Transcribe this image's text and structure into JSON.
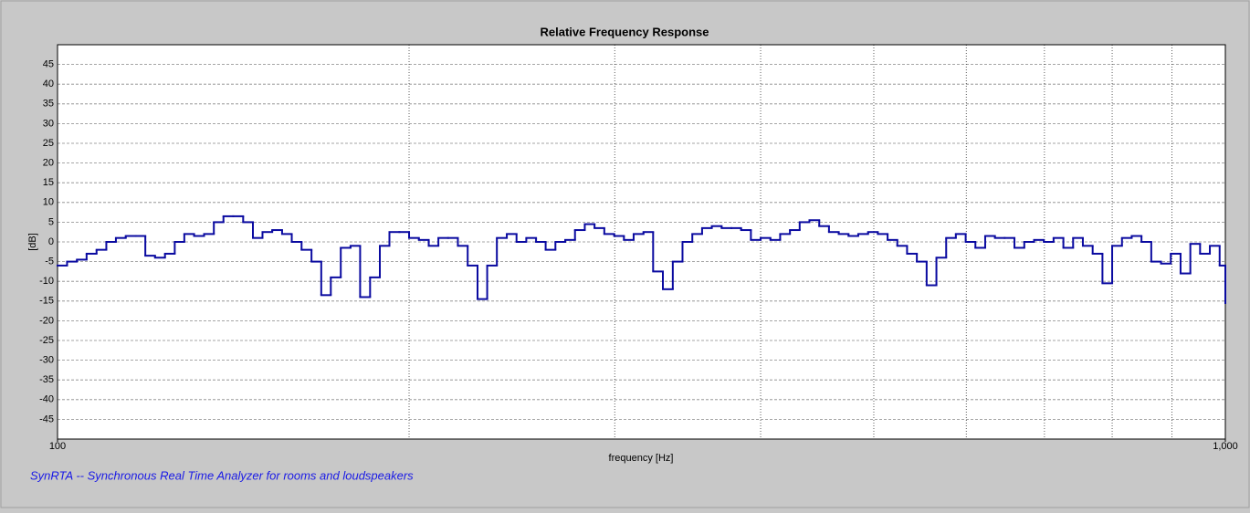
{
  "chart_data": {
    "type": "step",
    "title": "Relative Frequency Response",
    "xlabel": "frequency [Hz]",
    "ylabel": "[dB]",
    "xscale": "log",
    "xlim": [
      100,
      1000
    ],
    "ylim": [
      -50,
      50
    ],
    "xticks": [
      {
        "value": 100,
        "label": "100"
      },
      {
        "value": 1000,
        "label": "1,000"
      }
    ],
    "xgrid_minor": [
      200,
      300,
      400,
      500,
      600,
      700,
      800,
      900
    ],
    "yticks": [
      -45,
      -40,
      -35,
      -30,
      -25,
      -20,
      -15,
      -10,
      -5,
      0,
      5,
      10,
      15,
      20,
      25,
      30,
      35,
      40,
      45
    ],
    "grid": true,
    "color": "#0a0aa0",
    "x": [
      100,
      101.9,
      103.9,
      105.9,
      108.0,
      110.1,
      112.2,
      114.4,
      116.7,
      118.9,
      121.2,
      123.6,
      126.0,
      128.4,
      130.9,
      133.5,
      136.1,
      138.7,
      141.4,
      144.2,
      147.0,
      149.8,
      152.7,
      155.7,
      158.7,
      161.8,
      165.0,
      168.2,
      171.4,
      174.8,
      178.2,
      181.6,
      185.2,
      188.8,
      192.4,
      196.2,
      200,
      203.9,
      207.9,
      211.9,
      216.0,
      220.2,
      224.5,
      228.9,
      233.3,
      237.8,
      242.5,
      247.2,
      252.0,
      256.9,
      261.8,
      266.9,
      272.1,
      277.4,
      282.8,
      288.3,
      293.9,
      299.7,
      305.5,
      311.4,
      317.5,
      323.6,
      329.9,
      336.4,
      342.9,
      349.6,
      356.4,
      363.3,
      370.4,
      377.6,
      384.9,
      392.4,
      400,
      407.8,
      415.7,
      423.8,
      432.0,
      440.4,
      449.0,
      457.7,
      466.6,
      475.7,
      484.9,
      494.4,
      504.0,
      513.8,
      523.7,
      533.9,
      544.3,
      554.9,
      565.7,
      576.7,
      587.8,
      599.3,
      610.9,
      622.8,
      634.9,
      647.2,
      659.8,
      672.7,
      685.8,
      699.1,
      712.7,
      726.6,
      740.7,
      755.1,
      769.8,
      784.8,
      800,
      815.6,
      831.4,
      847.6,
      864.1,
      880.9,
      898.0,
      915.5,
      933.3,
      951.4,
      969.9,
      988.8,
      1000
    ],
    "values": [
      -6,
      -5,
      -4.5,
      -3,
      -2,
      0,
      1,
      1.5,
      1.5,
      -3.5,
      -4,
      -3,
      0,
      2,
      1.5,
      2,
      5,
      6.5,
      6.5,
      5,
      1,
      2.5,
      3,
      2,
      0,
      -2,
      -5,
      -13.5,
      -9,
      -1.5,
      -1,
      -14,
      -9,
      -1,
      2.5,
      2.5,
      1,
      0.5,
      -1,
      1,
      1,
      -1,
      -6,
      -14.5,
      -6,
      1,
      2,
      0,
      1,
      0,
      -2,
      0,
      0.5,
      3,
      4.5,
      3.5,
      2,
      1.5,
      0.5,
      2,
      2.5,
      -7.5,
      -12,
      -5,
      0,
      2,
      3.5,
      4,
      3.5,
      3.5,
      3,
      0.5,
      1,
      0.5,
      2,
      3,
      5,
      5.5,
      4,
      2.5,
      2,
      1.5,
      2,
      2.5,
      2,
      0.5,
      -1,
      -3,
      -5,
      -11,
      -4,
      1,
      2,
      0,
      -1.5,
      1.5,
      1,
      1,
      -1.5,
      0,
      0.5,
      0,
      1,
      -1.5,
      1,
      -1,
      -3,
      -10.5,
      -1,
      1,
      1.5,
      0,
      -5,
      -5.5,
      -3,
      -8,
      -0.5,
      -3,
      -1,
      -6,
      -15.5
    ]
  },
  "footer": "SynRTA -- Synchronous Real Time Analyzer for rooms and loudspeakers"
}
